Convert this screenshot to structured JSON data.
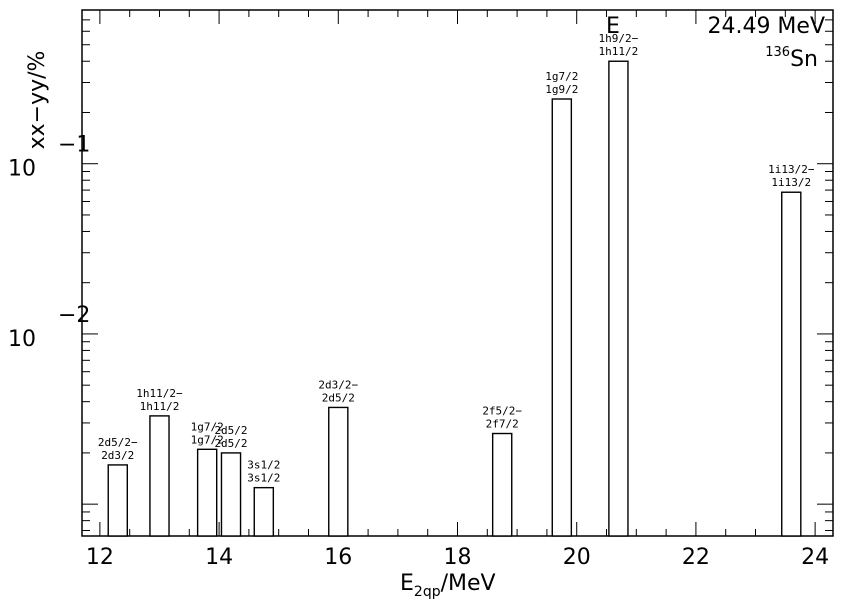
{
  "chart_data": {
    "type": "bar",
    "title": "",
    "xlabel_main": "E",
    "xlabel_sub": "2qp",
    "xlabel_tail": "/MeV",
    "ylabel": "xx−yy/%",
    "xlim": [
      11.7,
      24.3
    ],
    "ylim": [
      0.00065,
      0.8
    ],
    "yscale": "log",
    "xticks": [
      12,
      14,
      16,
      18,
      20,
      22,
      24
    ],
    "xtick_labels": [
      "12",
      "14",
      "16",
      "18",
      "20",
      "22",
      "24"
    ],
    "ytick_labels": [
      {
        "value": 0.1,
        "base": "10",
        "exp": "−1"
      },
      {
        "value": 0.01,
        "base": "10",
        "exp": "−2"
      }
    ],
    "annotation": {
      "label": "E",
      "value": "24.49 MeV"
    },
    "nucleus": {
      "mass": "136",
      "symbol": "Sn"
    },
    "bars": [
      {
        "x": 12.3,
        "y": 0.0017,
        "label1": "2d5/2−",
        "label2": "2d3/2"
      },
      {
        "x": 13.0,
        "y": 0.0033,
        "label1": "1h11/2−",
        "label2": "1h11/2"
      },
      {
        "x": 13.8,
        "y": 0.0021,
        "label1": "1g7/2",
        "label2": "1g7/2"
      },
      {
        "x": 14.2,
        "y": 0.002,
        "label1": "2d5/2",
        "label2": "2d5/2"
      },
      {
        "x": 14.75,
        "y": 0.00125,
        "label1": "3s1/2",
        "label2": "3s1/2"
      },
      {
        "x": 16.0,
        "y": 0.0037,
        "label1": "2d3/2−",
        "label2": "2d5/2"
      },
      {
        "x": 18.75,
        "y": 0.0026,
        "label1": "2f5/2−",
        "label2": "2f7/2"
      },
      {
        "x": 19.75,
        "y": 0.24,
        "label1": "1g7/2",
        "label2": "1g9/2"
      },
      {
        "x": 20.7,
        "y": 0.4,
        "label1": "1h9/2−",
        "label2": "1h11/2"
      },
      {
        "x": 23.6,
        "y": 0.068,
        "label1": "1i13/2−",
        "label2": "1i13/2"
      }
    ]
  }
}
